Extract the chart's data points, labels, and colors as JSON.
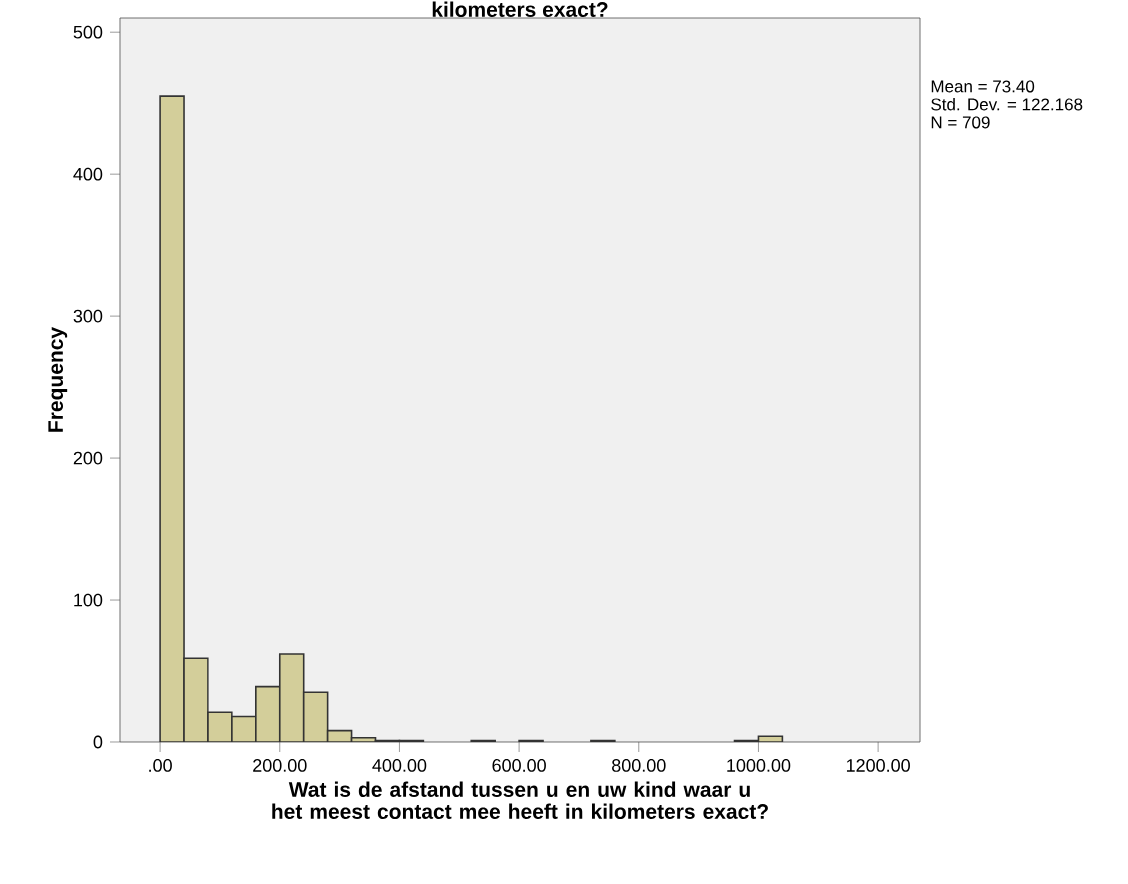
{
  "chart_data": {
    "type": "histogram",
    "title": "kilometers exact?",
    "xlabel": "Wat is de afstand tussen u en uw kind waar u het meest contact mee heeft in kilometers exact?",
    "ylabel": "Frequency",
    "bins": [
      0,
      40,
      80,
      120,
      160,
      200,
      240,
      280,
      320,
      360,
      400,
      440,
      480,
      520,
      560,
      600,
      640,
      680,
      720,
      760,
      800,
      840,
      880,
      920,
      960,
      1000,
      1040
    ],
    "values": [
      455,
      59,
      21,
      18,
      39,
      62,
      35,
      8,
      3,
      1,
      1,
      0,
      0,
      1,
      0,
      1,
      0,
      0,
      1,
      0,
      0,
      0,
      0,
      0,
      1,
      4
    ],
    "color": "#d3ce9a",
    "xlim": [
      -67,
      1270
    ],
    "ylim": [
      0,
      510
    ],
    "xticks": [
      {
        "value": 0,
        "label": ".00"
      },
      {
        "value": 200,
        "label": "200.00"
      },
      {
        "value": 400,
        "label": "400.00"
      },
      {
        "value": 600,
        "label": "600.00"
      },
      {
        "value": 800,
        "label": "800.00"
      },
      {
        "value": 1000,
        "label": "1000.00"
      },
      {
        "value": 1200,
        "label": "1200.00"
      }
    ],
    "yticks": [
      0,
      100,
      200,
      300,
      400,
      500
    ],
    "annotations": [
      "Mean = 73.40",
      "Std. Dev. = 122.168",
      "N = 709"
    ],
    "grid": false
  }
}
